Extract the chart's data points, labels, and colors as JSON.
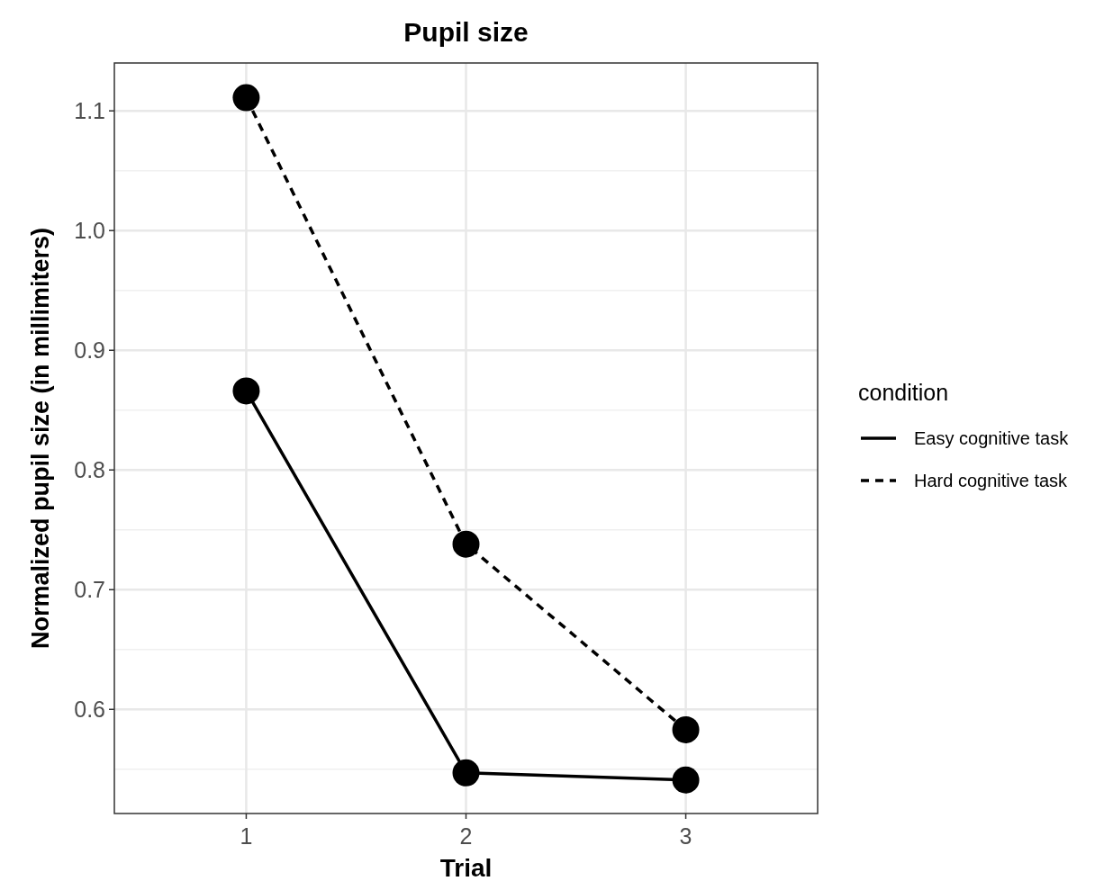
{
  "chart_data": {
    "type": "line",
    "title": "Pupil size",
    "xlabel": "Trial",
    "ylabel": "Normalized pupil size (in millimiters)",
    "legend_title": "condition",
    "x": [
      1,
      2,
      3
    ],
    "series": [
      {
        "name": "Easy cognitive task",
        "color": "#000000",
        "values": [
          0.866,
          0.547,
          0.541
        ],
        "line_style": "solid"
      },
      {
        "name": "Hard cognitive task",
        "color": "#000000",
        "values": [
          1.111,
          0.738,
          0.583
        ],
        "line_style": "dashed"
      }
    ],
    "xlim": [
      0.4,
      3.6
    ],
    "xticks": [
      1,
      2,
      3
    ],
    "ylim": [
      0.513,
      1.14
    ],
    "yticks": [
      0.6,
      0.7,
      0.8,
      0.9,
      {
        "value": 1.0,
        "label": "1.0"
      },
      1.1
    ],
    "grid": true,
    "legend": "right",
    "marker": "circle"
  }
}
